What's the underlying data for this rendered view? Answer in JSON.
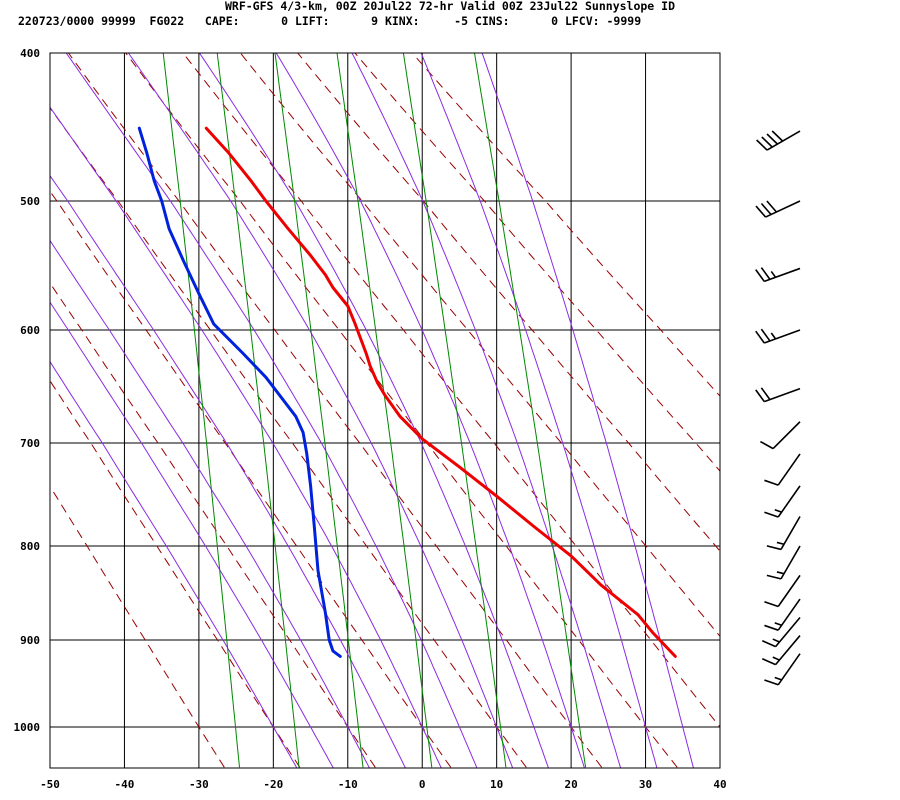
{
  "header": {
    "title": "WRF-GFS 4/3-km, 00Z 20Jul22 72-hr Valid 00Z 23Jul22 Sunnyslope ID",
    "stats": "220723/0000 99999  FG022   CAPE:      0 LIFT:      9 KINX:     -5 CINS:      0 LFCV: -9999"
  },
  "colors": {
    "temperature": "#ee0000",
    "dewpoint": "#0022dd",
    "grid": "#000000",
    "dry_adiabat": "#990000",
    "moist_adiabat": "#8a2be2",
    "mixing_ratio": "#008800",
    "wind_barb": "#000000"
  },
  "chart_data": {
    "type": "line",
    "title": "",
    "xlabel": "",
    "ylabel": "",
    "xlim": [
      -50,
      40
    ],
    "ylim": [
      1050,
      400
    ],
    "y_scale": "log",
    "grid": true,
    "x_ticks": [
      -50,
      -40,
      -30,
      -20,
      -10,
      0,
      10,
      20,
      30,
      40
    ],
    "y_ticks": [
      400,
      500,
      600,
      700,
      800,
      900,
      1000
    ],
    "series": [
      {
        "role": "temperature",
        "color": "#ee0000",
        "points": [
          [
            34,
            918
          ],
          [
            31,
            892
          ],
          [
            29,
            872
          ],
          [
            24,
            840
          ],
          [
            20,
            810
          ],
          [
            15,
            780
          ],
          [
            10,
            750
          ],
          [
            5,
            722
          ],
          [
            0,
            696
          ],
          [
            -3,
            675
          ],
          [
            -5,
            656
          ],
          [
            -6,
            645
          ],
          [
            -7,
            630
          ],
          [
            -7.5,
            620
          ],
          [
            -9,
            595
          ],
          [
            -10,
            580
          ],
          [
            -12,
            565
          ],
          [
            -13,
            555
          ],
          [
            -15,
            540
          ],
          [
            -18,
            520
          ],
          [
            -21,
            500
          ],
          [
            -23,
            485
          ],
          [
            -26,
            465
          ],
          [
            -29,
            448
          ]
        ]
      },
      {
        "role": "dewpoint",
        "color": "#0022dd",
        "points": [
          [
            -11,
            918
          ],
          [
            -12,
            912
          ],
          [
            -12.5,
            900
          ],
          [
            -13,
            870
          ],
          [
            -14,
            825
          ],
          [
            -14.5,
            780
          ],
          [
            -15,
            740
          ],
          [
            -15.5,
            710
          ],
          [
            -16,
            690
          ],
          [
            -17,
            675
          ],
          [
            -21,
            640
          ],
          [
            -24,
            620
          ],
          [
            -28,
            595
          ],
          [
            -30,
            570
          ],
          [
            -32,
            545
          ],
          [
            -34,
            520
          ],
          [
            -35,
            500
          ],
          [
            -36,
            485
          ],
          [
            -37,
            465
          ],
          [
            -38,
            448
          ]
        ]
      }
    ],
    "dry_adiabats_theta_C": [
      -30,
      -20,
      -10,
      0,
      10,
      20,
      30,
      40,
      50,
      60,
      70,
      80
    ],
    "moist_adiabats_theta_w_C": [
      -20,
      -15,
      -10,
      -5,
      0,
      5,
      10,
      15,
      20,
      25,
      30,
      35
    ],
    "mixing_ratio_lines_gkg": [
      0.5,
      1,
      2,
      4,
      8,
      16
    ],
    "wind_barbs": [
      {
        "p": 450,
        "dir": 240,
        "spd": 40
      },
      {
        "p": 500,
        "dir": 245,
        "spd": 30
      },
      {
        "p": 550,
        "dir": 250,
        "spd": 25
      },
      {
        "p": 600,
        "dir": 250,
        "spd": 25
      },
      {
        "p": 650,
        "dir": 250,
        "spd": 20
      },
      {
        "p": 680,
        "dir": 225,
        "spd": 10
      },
      {
        "p": 710,
        "dir": 215,
        "spd": 10
      },
      {
        "p": 740,
        "dir": 215,
        "spd": 15
      },
      {
        "p": 770,
        "dir": 210,
        "spd": 15
      },
      {
        "p": 800,
        "dir": 210,
        "spd": 15
      },
      {
        "p": 830,
        "dir": 215,
        "spd": 10
      },
      {
        "p": 855,
        "dir": 215,
        "spd": 15
      },
      {
        "p": 875,
        "dir": 220,
        "spd": 15
      },
      {
        "p": 895,
        "dir": 220,
        "spd": 15
      },
      {
        "p": 915,
        "dir": 215,
        "spd": 15
      }
    ]
  }
}
